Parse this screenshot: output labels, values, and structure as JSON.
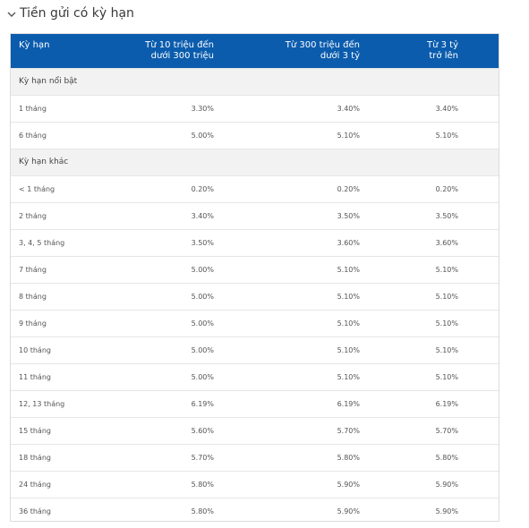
{
  "section": {
    "title": "Tiền gửi có kỳ hạn"
  },
  "table": {
    "header": {
      "col0": "Kỳ hạn",
      "col1_line1": "Từ 10 triệu đến",
      "col1_line2": "dưới 300 triệu",
      "col2_line1": "Từ 300 triệu đến",
      "col2_line2": "dưới 3 tỷ",
      "col3_line1": "Từ 3 tỷ",
      "col3_line2": "trở lên"
    },
    "groups": [
      {
        "label": "Kỳ hạn nổi bật",
        "rows": [
          {
            "term": "1 tháng",
            "v1": "3.30%",
            "v2": "3.40%",
            "v3": "3.40%"
          },
          {
            "term": "6 tháng",
            "v1": "5.00%",
            "v2": "5.10%",
            "v3": "5.10%"
          }
        ]
      },
      {
        "label": "Kỳ hạn khác",
        "rows": [
          {
            "term": "< 1 tháng",
            "v1": "0.20%",
            "v2": "0.20%",
            "v3": "0.20%"
          },
          {
            "term": "2 tháng",
            "v1": "3.40%",
            "v2": "3.50%",
            "v3": "3.50%"
          },
          {
            "term": "3, 4, 5 tháng",
            "v1": "3.50%",
            "v2": "3.60%",
            "v3": "3.60%"
          },
          {
            "term": "7 tháng",
            "v1": "5.00%",
            "v2": "5.10%",
            "v3": "5.10%"
          },
          {
            "term": "8 tháng",
            "v1": "5.00%",
            "v2": "5.10%",
            "v3": "5.10%"
          },
          {
            "term": "9 tháng",
            "v1": "5.00%",
            "v2": "5.10%",
            "v3": "5.10%"
          },
          {
            "term": "10 tháng",
            "v1": "5.00%",
            "v2": "5.10%",
            "v3": "5.10%"
          },
          {
            "term": "11 tháng",
            "v1": "5.00%",
            "v2": "5.10%",
            "v3": "5.10%"
          },
          {
            "term": "12, 13 tháng",
            "v1": "6.19%",
            "v2": "6.19%",
            "v3": "6.19%"
          },
          {
            "term": "15 tháng",
            "v1": "5.60%",
            "v2": "5.70%",
            "v3": "5.70%"
          },
          {
            "term": "18 tháng",
            "v1": "5.70%",
            "v2": "5.80%",
            "v3": "5.80%"
          },
          {
            "term": "24 tháng",
            "v1": "5.80%",
            "v2": "5.90%",
            "v3": "5.90%"
          },
          {
            "term": "36 tháng",
            "v1": "5.80%",
            "v2": "5.90%",
            "v3": "5.90%"
          }
        ]
      }
    ]
  },
  "colors": {
    "header_bg": "#0b5cad",
    "group_bg": "#f2f2f2"
  },
  "icons": {
    "collapse": "chevron-down-icon"
  }
}
